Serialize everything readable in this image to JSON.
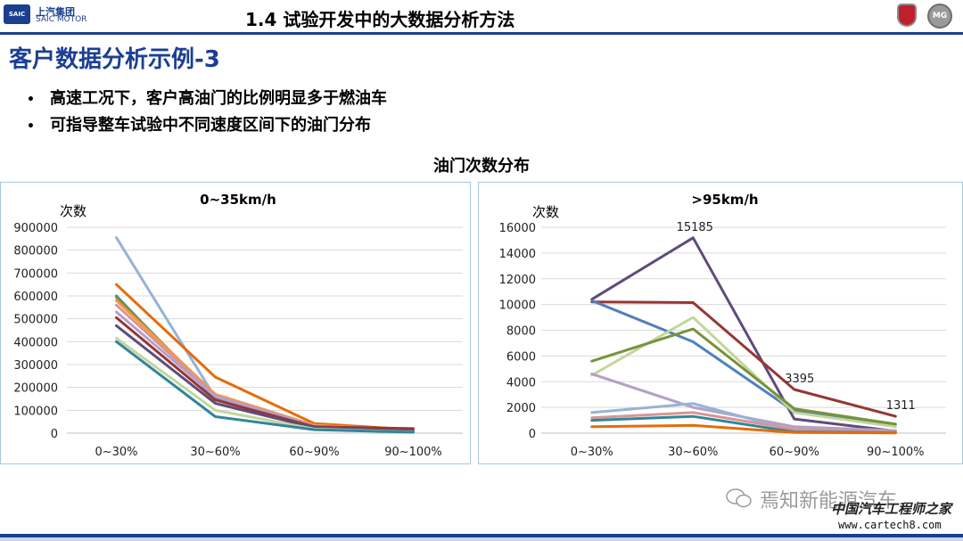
{
  "header": {
    "logo_cn": "上汽集团",
    "logo_en": "SAIC MOTOR",
    "logo_badge": "SAIC",
    "section_title": "1.4  试验开发中的大数据分析方法",
    "brand_mg": "MG"
  },
  "page_title": "客户数据分析示例-3",
  "bullets": [
    "高速工况下，客户高油门的比例明显多于燃油车",
    "可指导整车试验中不同速度区间下的油门分布"
  ],
  "chart_heading": "油门次数分布",
  "watermark": {
    "text": "焉知新能源汽车",
    "site_cn": "中国汽车工程师之家",
    "site_url": "www.cartech8.com"
  },
  "chart_data": [
    {
      "type": "line",
      "title": "0~35km/h",
      "ylabel": "次数",
      "xlabel": "",
      "categories": [
        "0~30%",
        "30~60%",
        "60~90%",
        "90~100%"
      ],
      "ylim": [
        0,
        900000
      ],
      "yticks": [
        0,
        100000,
        200000,
        300000,
        400000,
        500000,
        600000,
        700000,
        800000,
        900000
      ],
      "grid": true,
      "series": [
        {
          "color": "#95b3d7",
          "values": [
            855000,
            155000,
            28000,
            8000
          ]
        },
        {
          "color": "#e46c0a",
          "values": [
            650000,
            245000,
            42000,
            15000
          ]
        },
        {
          "color": "#4f81bd",
          "values": [
            600000,
            150000,
            25000,
            7000
          ]
        },
        {
          "color": "#77933c",
          "values": [
            595000,
            160000,
            30000,
            9000
          ]
        },
        {
          "color": "#f79646",
          "values": [
            580000,
            170000,
            35000,
            12000
          ]
        },
        {
          "color": "#d99594",
          "values": [
            560000,
            165000,
            32000,
            10000
          ]
        },
        {
          "color": "#b2a1c7",
          "values": [
            530000,
            160000,
            30000,
            9000
          ]
        },
        {
          "color": "#953735",
          "values": [
            505000,
            145000,
            28000,
            20000
          ]
        },
        {
          "color": "#604a7b",
          "values": [
            470000,
            130000,
            24000,
            8000
          ]
        },
        {
          "color": "#c3d69b",
          "values": [
            415000,
            100000,
            18000,
            5000
          ]
        },
        {
          "color": "#31859c",
          "values": [
            400000,
            72000,
            15000,
            4000
          ]
        }
      ]
    },
    {
      "type": "line",
      "title": ">95km/h",
      "ylabel": "次数",
      "xlabel": "",
      "categories": [
        "0~30%",
        "30~60%",
        "60~90%",
        "90~100%"
      ],
      "ylim": [
        0,
        16000
      ],
      "yticks": [
        0,
        2000,
        4000,
        6000,
        8000,
        10000,
        12000,
        14000,
        16000
      ],
      "grid": true,
      "annotations": [
        {
          "series": 0,
          "index": 1,
          "text": "15185"
        },
        {
          "series": 1,
          "index": 2,
          "text": "3395"
        },
        {
          "series": 1,
          "index": 3,
          "text": "1311"
        }
      ],
      "series": [
        {
          "color": "#604a7b",
          "values": [
            10400,
            15185,
            1100,
            150
          ]
        },
        {
          "color": "#953735",
          "values": [
            10200,
            10150,
            3395,
            1311
          ]
        },
        {
          "color": "#4f81bd",
          "values": [
            10300,
            7100,
            1700,
            700
          ]
        },
        {
          "color": "#c3d69b",
          "values": [
            4500,
            9000,
            1600,
            500
          ]
        },
        {
          "color": "#77933c",
          "values": [
            5600,
            8100,
            1900,
            700
          ]
        },
        {
          "color": "#b2a1c7",
          "values": [
            4600,
            2000,
            500,
            200
          ]
        },
        {
          "color": "#95b3d7",
          "values": [
            1600,
            2300,
            200,
            80
          ]
        },
        {
          "color": "#d99594",
          "values": [
            1200,
            1600,
            300,
            100
          ]
        },
        {
          "color": "#31859c",
          "values": [
            1000,
            1300,
            100,
            40
          ]
        },
        {
          "color": "#e46c0a",
          "values": [
            500,
            600,
            50,
            20
          ]
        }
      ]
    }
  ]
}
